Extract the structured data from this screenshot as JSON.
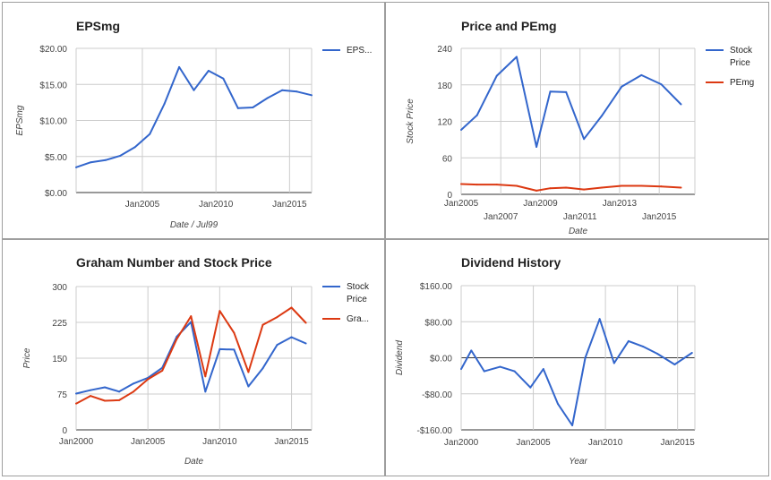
{
  "colors": {
    "blue": "#3366cc",
    "red": "#dc3912",
    "grid": "#cccccc",
    "zero_line": "#333333",
    "text": "#222222",
    "axis_text": "#444444"
  },
  "chart_data": [
    {
      "type": "line",
      "title": "EPSmg",
      "xlabel": "Date / Jul99",
      "ylabel": "EPSmg",
      "x_ticks": [
        "Jan2005",
        "Jan2010",
        "Jan2015"
      ],
      "y_ticks": [
        "$20.00",
        "$15.00",
        "$10.00",
        "$5.00",
        "$0.00"
      ],
      "ylim": [
        0,
        20
      ],
      "xlim": [
        2000.5,
        2016.5
      ],
      "x_tick_values": [
        2005,
        2010,
        2015
      ],
      "grid": true,
      "legend_position": "right",
      "series": [
        {
          "name": "EPS...",
          "color": "#3366cc",
          "x": [
            2000.5,
            2001.5,
            2002.5,
            2003.5,
            2004.5,
            2005.5,
            2006.5,
            2007.5,
            2008.5,
            2009.5,
            2010.5,
            2011.5,
            2012.5,
            2013.5,
            2014.5,
            2015.5,
            2016.5
          ],
          "y": [
            3.5,
            4.2,
            4.5,
            5.1,
            6.3,
            8.1,
            12.3,
            17.4,
            14.2,
            16.9,
            15.8,
            11.7,
            11.8,
            13.1,
            14.2,
            14.0,
            13.5
          ]
        }
      ]
    },
    {
      "type": "line",
      "title": "Price and PEmg",
      "xlabel": "Date",
      "ylabel": "Stock Price",
      "x_ticks_upper": [
        "Jan2005",
        "Jan2009",
        "Jan2013"
      ],
      "x_ticks_lower": [
        "Jan2007",
        "Jan2011",
        "Jan2015"
      ],
      "y_ticks": [
        "240",
        "180",
        "120",
        "60",
        "0"
      ],
      "ylim": [
        0,
        240
      ],
      "xlim": [
        2005,
        2016.8
      ],
      "grid": true,
      "legend_position": "right",
      "series": [
        {
          "name": "Stock Price",
          "color": "#3366cc",
          "x": [
            2005,
            2005.8,
            2006.8,
            2007.8,
            2008.8,
            2009.5,
            2010.3,
            2011.2,
            2012.1,
            2013.1,
            2014.1,
            2015.1,
            2016.1
          ],
          "y": [
            106,
            130,
            195,
            226,
            78,
            169,
            168,
            91,
            129,
            177,
            196,
            181,
            148
          ]
        },
        {
          "name": "PEmg",
          "color": "#dc3912",
          "x": [
            2005,
            2005.8,
            2006.8,
            2007.8,
            2008.8,
            2009.5,
            2010.3,
            2011.2,
            2012.1,
            2013.1,
            2014.1,
            2015.1,
            2016.1
          ],
          "y": [
            17,
            16,
            16,
            14,
            6,
            10,
            11,
            8,
            11,
            14,
            14,
            13,
            11
          ]
        }
      ]
    },
    {
      "type": "line",
      "title": "Graham Number and Stock Price",
      "xlabel": "Date",
      "ylabel": "Price",
      "x_ticks": [
        "Jan2000",
        "Jan2005",
        "Jan2010",
        "Jan2015"
      ],
      "x_tick_values": [
        2000,
        2005,
        2010,
        2015
      ],
      "y_ticks": [
        "300",
        "225",
        "150",
        "75",
        "0"
      ],
      "ylim": [
        0,
        300
      ],
      "xlim": [
        2000,
        2016.4
      ],
      "grid": true,
      "legend_position": "right",
      "series": [
        {
          "name": "Stock Price",
          "color": "#3366cc",
          "x": [
            2000,
            2001,
            2002,
            2003,
            2004,
            2005,
            2006,
            2007,
            2008,
            2009,
            2010,
            2011,
            2012,
            2013,
            2014,
            2015,
            2016
          ],
          "y": [
            76,
            83,
            89,
            80,
            97,
            109,
            130,
            195,
            226,
            80,
            169,
            168,
            91,
            129,
            178,
            194,
            181
          ]
        },
        {
          "name": "Gra...",
          "color": "#dc3912",
          "x": [
            2000,
            2001,
            2002,
            2003,
            2004,
            2005,
            2006,
            2007,
            2008,
            2009,
            2010,
            2011,
            2012,
            2013,
            2014,
            2015,
            2016
          ],
          "y": [
            55,
            71,
            61,
            62,
            80,
            106,
            124,
            190,
            238,
            112,
            249,
            203,
            121,
            220,
            236,
            256,
            224
          ]
        }
      ]
    },
    {
      "type": "line",
      "title": "Dividend History",
      "xlabel": "Year",
      "ylabel": "Dividend",
      "x_ticks": [
        "Jan2000",
        "Jan2005",
        "Jan2010",
        "Jan2015"
      ],
      "x_tick_values": [
        2000,
        2005,
        2010,
        2015
      ],
      "y_ticks": [
        "$160.00",
        "$80.00",
        "$0.00",
        "-$80.00",
        "-$160.00"
      ],
      "ylim": [
        -160,
        160
      ],
      "xlim": [
        2000,
        2016.2
      ],
      "grid": true,
      "legend_position": "none",
      "series": [
        {
          "name": "",
          "color": "#3366cc",
          "x": [
            2000,
            2000.7,
            2001.6,
            2002.7,
            2003.7,
            2004.8,
            2005.7,
            2006.7,
            2007.7,
            2008.6,
            2009.6,
            2010.6,
            2011.6,
            2012.6,
            2013.6,
            2014.8,
            2016
          ],
          "y": [
            -25,
            16,
            -30,
            -20,
            -30,
            -66,
            -25,
            -102,
            -150,
            0,
            86,
            -12,
            37,
            25,
            9,
            -15,
            11
          ]
        }
      ]
    }
  ]
}
